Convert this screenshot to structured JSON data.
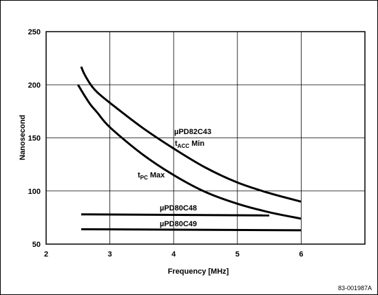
{
  "chart_data": {
    "type": "line",
    "title": "",
    "xlabel": "Frequency [MHz]",
    "ylabel": "Nanosecond",
    "xlim": [
      2,
      7
    ],
    "ylim": [
      50,
      250
    ],
    "xticks": [
      2,
      3,
      4,
      5,
      6
    ],
    "yticks": [
      50,
      100,
      150,
      200,
      250
    ],
    "grid": true,
    "series": [
      {
        "label_main": "µPD82C43",
        "label_sub_prefix": "t",
        "label_sub": "ACC",
        "label_suffix": " Min",
        "x": [
          2.55,
          2.6,
          2.7,
          2.8,
          3.0,
          3.5,
          4.0,
          4.5,
          5.0,
          5.5,
          6.0
        ],
        "y": [
          217,
          210,
          200,
          193,
          183,
          160,
          140,
          122,
          108,
          98,
          90
        ]
      },
      {
        "label_main": "",
        "label_sub_prefix": "t",
        "label_sub": "PC",
        "label_suffix": " Max",
        "x": [
          2.5,
          2.6,
          2.7,
          2.8,
          3.0,
          3.5,
          4.0,
          4.5,
          5.0,
          5.5,
          6.0
        ],
        "y": [
          200,
          190,
          181,
          174,
          160,
          135,
          115,
          99,
          88,
          80,
          74
        ]
      },
      {
        "label_main": "µPD80C48",
        "x": [
          2.55,
          5.5
        ],
        "y": [
          78,
          77
        ]
      },
      {
        "label_main": "µPD80C49",
        "x": [
          2.55,
          6.0
        ],
        "y": [
          64,
          63
        ]
      }
    ]
  },
  "figure_id": "83-001987A"
}
